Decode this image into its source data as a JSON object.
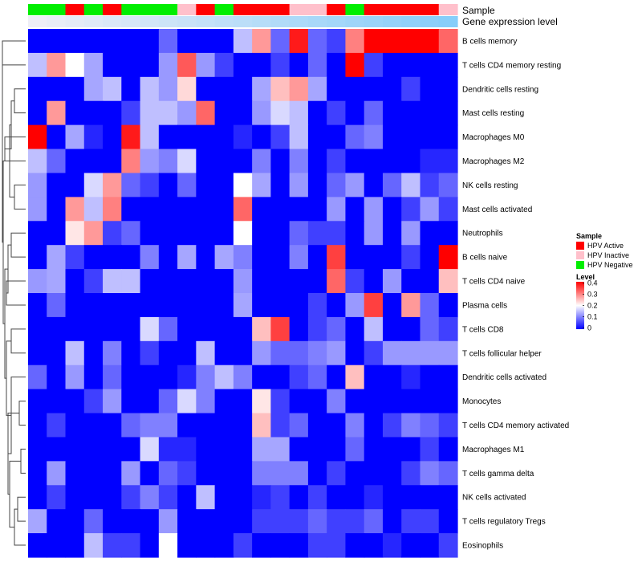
{
  "chart_data": {
    "type": "heatmap",
    "annotation_tracks": [
      {
        "name": "Sample",
        "label": "Sample"
      },
      {
        "name": "Gene expression level",
        "label": "Gene expression level"
      }
    ],
    "sample_groups": [
      "HPV Negative",
      "HPV Negative",
      "HPV Active",
      "HPV Negative",
      "HPV Active",
      "HPV Negative",
      "HPV Negative",
      "HPV Negative",
      "HPV Inactive",
      "HPV Active",
      "HPV Negative",
      "HPV Active",
      "HPV Active",
      "HPV Active",
      "HPV Inactive",
      "HPV Inactive",
      "HPV Active",
      "HPV Negative",
      "HPV Active",
      "HPV Active",
      "HPV Active",
      "HPV Active",
      "HPV Inactive"
    ],
    "sample_colors": {
      "HPV Active": "#ff0000",
      "HPV Inactive": "#ffc0cb",
      "HPV Negative": "#00ee00"
    },
    "expression_colors": {
      "low": "#eeeef6",
      "high": "#87cefa"
    },
    "rows": [
      "B cells memory",
      "T cells CD4 memory resting",
      "Dendritic cells resting",
      "Mast cells resting",
      "Macrophages M0",
      "Macrophages M2",
      "NK cells resting",
      "Mast cells activated",
      "Neutrophils",
      "B cells naive",
      "T cells CD4 naive",
      "Plasma cells",
      "T cells CD8",
      "T cells follicular helper",
      "Dendritic cells activated",
      "Monocytes",
      "T cells CD4 memory activated",
      "Macrophages M1",
      "T cells gamma delta",
      "NK cells activated",
      "T cells regulatory  Tregs",
      "Eosinophils"
    ],
    "values": [
      [
        0.0,
        0.0,
        0.0,
        0.0,
        0.0,
        0.0,
        0.0,
        0.08,
        0.0,
        0.0,
        0.0,
        0.15,
        0.28,
        0.08,
        0.38,
        0.08,
        0.05,
        0.3,
        0.4,
        0.4,
        0.4,
        0.4,
        0.32
      ],
      [
        0.15,
        0.28,
        0.2,
        0.13,
        0.0,
        0.0,
        0.0,
        0.12,
        0.33,
        0.12,
        0.05,
        0.0,
        0.0,
        0.05,
        0.0,
        0.08,
        0.0,
        0.4,
        0.05,
        0.0,
        0.0,
        0.0,
        0.0
      ],
      [
        0.0,
        0.0,
        0.0,
        0.13,
        0.15,
        0.0,
        0.15,
        0.12,
        0.23,
        0.0,
        0.0,
        0.0,
        0.13,
        0.25,
        0.28,
        0.13,
        0.0,
        0.0,
        0.0,
        0.0,
        0.05,
        0.0,
        0.0
      ],
      [
        0.0,
        0.28,
        0.0,
        0.0,
        0.0,
        0.05,
        0.15,
        0.15,
        0.12,
        0.32,
        0.0,
        0.0,
        0.12,
        0.17,
        0.15,
        0.0,
        0.05,
        0.0,
        0.08,
        0.0,
        0.0,
        0.0,
        0.0
      ],
      [
        0.4,
        0.0,
        0.13,
        0.03,
        0.0,
        0.38,
        0.15,
        0.0,
        0.0,
        0.0,
        0.0,
        0.03,
        0.0,
        0.05,
        0.15,
        0.0,
        0.0,
        0.08,
        0.1,
        0.0,
        0.0,
        0.0,
        0.0
      ],
      [
        0.15,
        0.08,
        0.0,
        0.0,
        0.0,
        0.3,
        0.12,
        0.1,
        0.17,
        0.0,
        0.0,
        0.0,
        0.1,
        0.0,
        0.1,
        0.0,
        0.05,
        0.0,
        0.0,
        0.0,
        0.0,
        0.03,
        0.03
      ],
      [
        0.12,
        0.0,
        0.0,
        0.17,
        0.28,
        0.08,
        0.05,
        0.0,
        0.08,
        0.0,
        0.0,
        0.2,
        0.13,
        0.0,
        0.12,
        0.0,
        0.08,
        0.12,
        0.0,
        0.08,
        0.15,
        0.05,
        0.08
      ],
      [
        0.12,
        0.0,
        0.28,
        0.15,
        0.3,
        0.0,
        0.0,
        0.0,
        0.0,
        0.0,
        0.0,
        0.32,
        0.0,
        0.0,
        0.0,
        0.0,
        0.12,
        0.0,
        0.12,
        0.0,
        0.05,
        0.12,
        0.05
      ],
      [
        0.0,
        0.0,
        0.22,
        0.28,
        0.05,
        0.08,
        0.0,
        0.0,
        0.0,
        0.0,
        0.0,
        0.2,
        0.0,
        0.0,
        0.08,
        0.05,
        0.05,
        0.0,
        0.12,
        0.0,
        0.12,
        0.0,
        0.0
      ],
      [
        0.0,
        0.13,
        0.05,
        0.0,
        0.0,
        0.0,
        0.1,
        0.0,
        0.13,
        0.0,
        0.13,
        0.1,
        0.0,
        0.0,
        0.1,
        0.0,
        0.35,
        0.0,
        0.0,
        0.0,
        0.05,
        0.0,
        0.4
      ],
      [
        0.12,
        0.13,
        0.0,
        0.05,
        0.15,
        0.15,
        0.0,
        0.0,
        0.0,
        0.0,
        0.0,
        0.12,
        0.0,
        0.0,
        0.0,
        0.0,
        0.32,
        0.05,
        0.0,
        0.12,
        0.0,
        0.0,
        0.25
      ],
      [
        0.0,
        0.08,
        0.0,
        0.0,
        0.0,
        0.0,
        0.0,
        0.0,
        0.0,
        0.0,
        0.0,
        0.13,
        0.0,
        0.0,
        0.0,
        0.05,
        0.0,
        0.12,
        0.35,
        0.0,
        0.28,
        0.08,
        0.0
      ],
      [
        0.0,
        0.0,
        0.0,
        0.0,
        0.0,
        0.0,
        0.17,
        0.08,
        0.0,
        0.0,
        0.0,
        0.0,
        0.25,
        0.35,
        0.0,
        0.05,
        0.08,
        0.0,
        0.15,
        0.0,
        0.0,
        0.08,
        0.05
      ],
      [
        0.0,
        0.0,
        0.15,
        0.0,
        0.1,
        0.0,
        0.05,
        0.0,
        0.0,
        0.15,
        0.0,
        0.0,
        0.12,
        0.08,
        0.08,
        0.1,
        0.12,
        0.0,
        0.05,
        0.12,
        0.12,
        0.12,
        0.12
      ],
      [
        0.08,
        0.0,
        0.12,
        0.0,
        0.08,
        0.0,
        0.0,
        0.0,
        0.03,
        0.1,
        0.15,
        0.1,
        0.0,
        0.0,
        0.05,
        0.08,
        0.0,
        0.25,
        0.0,
        0.0,
        0.03,
        0.0,
        0.0
      ],
      [
        0.0,
        0.0,
        0.0,
        0.05,
        0.12,
        0.0,
        0.0,
        0.08,
        0.17,
        0.1,
        0.0,
        0.0,
        0.22,
        0.05,
        0.0,
        0.0,
        0.1,
        0.0,
        0.0,
        0.0,
        0.0,
        0.0,
        0.0
      ],
      [
        0.0,
        0.05,
        0.0,
        0.0,
        0.0,
        0.08,
        0.1,
        0.1,
        0.0,
        0.0,
        0.0,
        0.0,
        0.25,
        0.05,
        0.08,
        0.0,
        0.0,
        0.1,
        0.0,
        0.05,
        0.1,
        0.08,
        0.05
      ],
      [
        0.0,
        0.0,
        0.0,
        0.0,
        0.0,
        0.0,
        0.17,
        0.03,
        0.03,
        0.0,
        0.0,
        0.0,
        0.13,
        0.13,
        0.0,
        0.0,
        0.0,
        0.08,
        0.0,
        0.0,
        0.0,
        0.05,
        0.0
      ],
      [
        0.0,
        0.12,
        0.0,
        0.0,
        0.0,
        0.12,
        0.0,
        0.08,
        0.05,
        0.0,
        0.0,
        0.0,
        0.1,
        0.1,
        0.1,
        0.0,
        0.05,
        0.0,
        0.0,
        0.0,
        0.05,
        0.1,
        0.08
      ],
      [
        0.0,
        0.05,
        0.0,
        0.0,
        0.0,
        0.05,
        0.1,
        0.05,
        0.0,
        0.15,
        0.0,
        0.0,
        0.03,
        0.05,
        0.0,
        0.05,
        0.0,
        0.0,
        0.03,
        0.0,
        0.0,
        0.0,
        0.0
      ],
      [
        0.13,
        0.0,
        0.0,
        0.08,
        0.0,
        0.0,
        0.0,
        0.12,
        0.0,
        0.0,
        0.0,
        0.0,
        0.05,
        0.05,
        0.05,
        0.08,
        0.05,
        0.05,
        0.08,
        0.0,
        0.05,
        0.05,
        0.0
      ],
      [
        0.0,
        0.0,
        0.0,
        0.15,
        0.05,
        0.05,
        0.0,
        0.2,
        0.0,
        0.0,
        0.0,
        0.05,
        0.0,
        0.0,
        0.0,
        0.05,
        0.05,
        0.0,
        0.0,
        0.03,
        0.0,
        0.0,
        0.05
      ]
    ],
    "color_scale": {
      "min": 0,
      "max": 0.4,
      "low": "#0000ff",
      "mid": "#ffffff",
      "high": "#ff0000"
    },
    "legend": {
      "sample_title": "Sample",
      "sample_entries": [
        "HPV Active",
        "HPV Inactive",
        "HPV Negative"
      ],
      "level_title": "Level",
      "level_ticks": [
        "0.4",
        "0.3",
        "0.2",
        "0.1",
        "0"
      ],
      "placement": "right"
    }
  }
}
